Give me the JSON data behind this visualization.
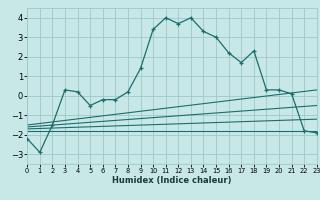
{
  "bg_color": "#c8e8e8",
  "grid_color": "#a0c8c8",
  "line_color": "#1a6e6a",
  "xlabel": "Humidex (Indice chaleur)",
  "xlim": [
    0,
    23
  ],
  "ylim": [
    -3.5,
    4.5
  ],
  "yticks": [
    -3,
    -2,
    -1,
    0,
    1,
    2,
    3,
    4
  ],
  "xticks": [
    0,
    1,
    2,
    3,
    4,
    5,
    6,
    7,
    8,
    9,
    10,
    11,
    12,
    13,
    14,
    15,
    16,
    17,
    18,
    19,
    20,
    21,
    22,
    23
  ],
  "main_x": [
    0,
    1,
    2,
    3,
    4,
    5,
    6,
    7,
    8,
    9,
    10,
    11,
    12,
    13,
    14,
    15,
    16,
    17,
    18,
    19,
    20,
    21,
    22,
    23
  ],
  "main_y": [
    -2.2,
    -2.9,
    -1.5,
    0.3,
    0.2,
    -0.5,
    -0.2,
    -0.2,
    0.2,
    1.4,
    3.4,
    4.0,
    3.7,
    4.0,
    3.3,
    3.0,
    2.2,
    1.7,
    2.3,
    0.3,
    0.3,
    0.1,
    -1.8,
    -1.9
  ],
  "trend_lines": [
    {
      "x": [
        0,
        23
      ],
      "y": [
        -1.5,
        0.3
      ]
    },
    {
      "x": [
        0,
        23
      ],
      "y": [
        -1.6,
        -0.5
      ]
    },
    {
      "x": [
        0,
        23
      ],
      "y": [
        -1.7,
        -1.2
      ]
    },
    {
      "x": [
        0,
        23
      ],
      "y": [
        -1.8,
        -1.8
      ]
    }
  ]
}
